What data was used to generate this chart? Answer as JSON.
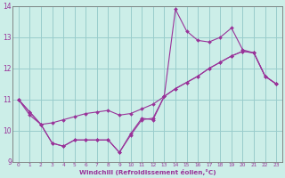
{
  "xlabel": "Windchill (Refroidissement éolien,°C)",
  "bg_color": "#cceee8",
  "line_color": "#993399",
  "grid_color": "#99cccc",
  "xlim": [
    -0.5,
    23.5
  ],
  "ylim": [
    9,
    14
  ],
  "yticks": [
    9,
    10,
    11,
    12,
    13,
    14
  ],
  "xticks": [
    0,
    1,
    2,
    3,
    4,
    5,
    6,
    7,
    8,
    9,
    10,
    11,
    12,
    13,
    14,
    15,
    16,
    17,
    18,
    19,
    20,
    21,
    22,
    23
  ],
  "line1_x": [
    0,
    1,
    2,
    3,
    4,
    5,
    6,
    7,
    8,
    9,
    10,
    11,
    12,
    13,
    14,
    15,
    16,
    17,
    18,
    19,
    20,
    21,
    22,
    23
  ],
  "line1_y": [
    11.0,
    10.6,
    10.2,
    9.6,
    9.5,
    9.7,
    9.7,
    9.7,
    9.7,
    9.3,
    9.9,
    10.4,
    10.35,
    11.1,
    13.9,
    13.2,
    12.9,
    12.85,
    13.0,
    13.3,
    12.6,
    12.5,
    11.75,
    11.5
  ],
  "line2_x": [
    0,
    1,
    2,
    3,
    4,
    5,
    6,
    7,
    8,
    9,
    10,
    11,
    12,
    13,
    14,
    15,
    16,
    17,
    18,
    19,
    20,
    21,
    22,
    23
  ],
  "line2_y": [
    11.0,
    10.5,
    10.2,
    10.25,
    10.35,
    10.45,
    10.55,
    10.6,
    10.65,
    10.5,
    10.55,
    10.7,
    10.85,
    11.1,
    11.35,
    11.55,
    11.75,
    12.0,
    12.2,
    12.4,
    12.55,
    12.5,
    11.75,
    11.5
  ],
  "line3_x": [
    0,
    1,
    2,
    3,
    4,
    5,
    6,
    7,
    8,
    9,
    10,
    11,
    12,
    13,
    14,
    15,
    16,
    17,
    18,
    19,
    20,
    21,
    22,
    23
  ],
  "line3_y": [
    11.0,
    10.6,
    10.2,
    9.6,
    9.5,
    9.7,
    9.7,
    9.7,
    9.7,
    9.3,
    9.85,
    10.35,
    10.4,
    11.1,
    11.35,
    11.55,
    11.75,
    12.0,
    12.2,
    12.4,
    12.55,
    12.5,
    11.75,
    11.5
  ]
}
